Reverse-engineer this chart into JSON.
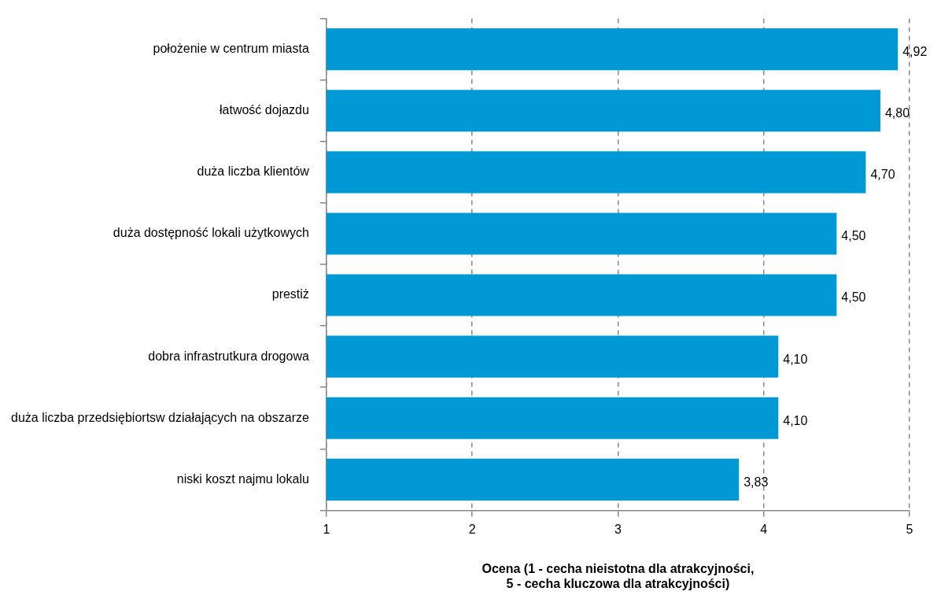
{
  "chart_data": {
    "type": "bar",
    "orientation": "horizontal",
    "categories": [
      "położenie w centrum miasta",
      "łatwość dojazdu",
      "duża liczba klientów",
      "duża dostępność lokali użytkowych",
      "prestiż",
      "dobra infrastrutkura drogowa",
      "duża liczba przedsiębiortsw działających na obszarze",
      "niski koszt najmu lokalu"
    ],
    "values": [
      4.92,
      4.8,
      4.7,
      4.5,
      4.5,
      4.1,
      4.1,
      3.83
    ],
    "value_labels": [
      "4,92",
      "4,80",
      "4,70",
      "4,50",
      "4,50",
      "4,10",
      "4,10",
      "3,83"
    ],
    "color": "#0099d5",
    "xlim": [
      1,
      5
    ],
    "xticks": [
      1,
      2,
      3,
      4,
      5
    ],
    "xlabel": "Ocena (1 - cecha nieistotna dla atrakcyjności,\n5 - cecha kluczowa dla atrakcyjności)",
    "grid": "x",
    "legend": false
  }
}
